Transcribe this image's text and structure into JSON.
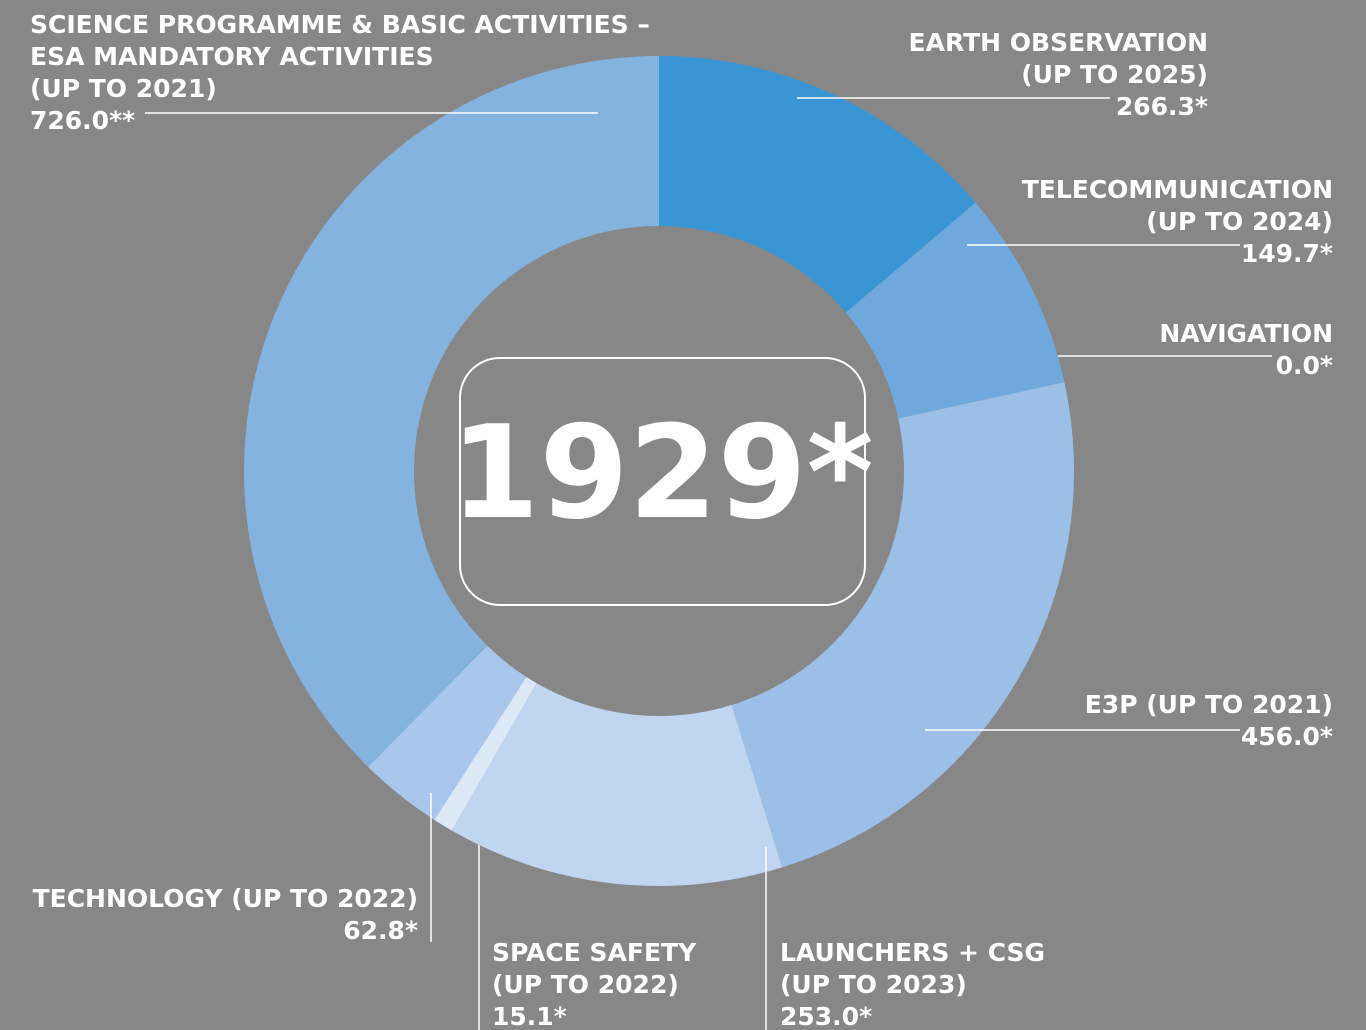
{
  "chart_data": {
    "type": "donut",
    "categories": [
      [
        "EARTH OBSERVATION",
        "(UP TO 2025)"
      ],
      [
        "TELECOMMUNICATION",
        "(UP TO 2024)"
      ],
      [
        "NAVIGATION"
      ],
      [
        "E3P (UP TO 2021)"
      ],
      [
        "LAUNCHERS + CSG",
        "(UP TO 2023)"
      ],
      [
        "SPACE SAFETY",
        "(UP TO 2022)"
      ],
      [
        "TECHNOLOGY (UP TO 2022)"
      ],
      [
        "SCIENCE PROGRAMME & BASIC ACTIVITIES –",
        "ESA MANDATORY ACTIVITIES",
        "(UP TO 2021)"
      ]
    ],
    "values": [
      266.3,
      149.7,
      0.0,
      456.0,
      253.0,
      15.1,
      62.8,
      726.0
    ],
    "value_labels": [
      "266.3*",
      "149.7*",
      "0.0*",
      "456.0*",
      "253.0*",
      "15.1*",
      "62.8*",
      "726.0**"
    ],
    "colors": [
      "#3a95d4",
      "#6fa8dc",
      "#5e9fd8",
      "#9bbfe6",
      "#bfd5f0",
      "#dde8f7",
      "#a9c6ec",
      "#85b3e0"
    ],
    "total_label": "1929*"
  }
}
